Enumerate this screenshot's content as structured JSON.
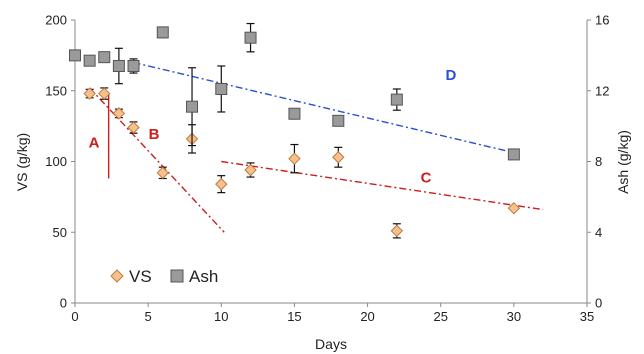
{
  "chart_data": {
    "type": "scatter",
    "title": "",
    "xlabel": "Days",
    "ylabel_left": "VS (g/kg)",
    "ylabel_right": "Ash (g/kg)",
    "xlim": [
      0,
      35
    ],
    "ylim_left": [
      0,
      200
    ],
    "ylim_right": [
      0,
      16
    ],
    "x_ticks": [
      "0",
      "5",
      "10",
      "15",
      "20",
      "25",
      "30",
      "35"
    ],
    "y_left_ticks": [
      "0",
      "50",
      "100",
      "150",
      "200"
    ],
    "y_right_ticks": [
      "0",
      "4",
      "8",
      "12",
      "16"
    ],
    "grid": false,
    "legend_position": "bottom-left",
    "series": [
      {
        "name": "VS",
        "axis": "left",
        "marker": "diamond",
        "color": "#f6c08f",
        "edge": "#c07a3a",
        "points": [
          {
            "x": 1,
            "y": 148,
            "err": 3
          },
          {
            "x": 2,
            "y": 148,
            "err": 4
          },
          {
            "x": 3,
            "y": 134,
            "err": 3
          },
          {
            "x": 4,
            "y": 124,
            "err": 4
          },
          {
            "x": 6,
            "y": 92,
            "err": 4
          },
          {
            "x": 8,
            "y": 116,
            "err": 10
          },
          {
            "x": 10,
            "y": 84,
            "err": 6
          },
          {
            "x": 12,
            "y": 94,
            "err": 5
          },
          {
            "x": 15,
            "y": 102,
            "err": 10
          },
          {
            "x": 18,
            "y": 103,
            "err": 7
          },
          {
            "x": 22,
            "y": 51,
            "err": 5
          },
          {
            "x": 30,
            "y": 67,
            "err": 1
          }
        ]
      },
      {
        "name": "Ash",
        "axis": "right",
        "marker": "square",
        "color": "#9a9a9a",
        "edge": "#555555",
        "points": [
          {
            "x": 0,
            "y": 14.0,
            "err": 0.2
          },
          {
            "x": 1,
            "y": 13.7,
            "err": 0.2
          },
          {
            "x": 2,
            "y": 13.9,
            "err": 0.2
          },
          {
            "x": 3,
            "y": 13.4,
            "err": 1.0
          },
          {
            "x": 4,
            "y": 13.4,
            "err": 0.4
          },
          {
            "x": 6,
            "y": 15.3,
            "err": 0.3
          },
          {
            "x": 8,
            "y": 11.1,
            "err": 2.2
          },
          {
            "x": 10,
            "y": 12.1,
            "err": 1.3
          },
          {
            "x": 12,
            "y": 15.0,
            "err": 0.8
          },
          {
            "x": 15,
            "y": 10.7,
            "err": 0.2
          },
          {
            "x": 18,
            "y": 10.3,
            "err": 0.2
          },
          {
            "x": 22,
            "y": 11.5,
            "err": 0.6
          },
          {
            "x": 30,
            "y": 8.4,
            "err": 0.2
          }
        ]
      }
    ],
    "trend_lines": [
      {
        "label": "A",
        "color": "#cc1e1e",
        "style": "solid",
        "axis": "left",
        "from": [
          2.3,
          148
        ],
        "to": [
          2.3,
          88
        ],
        "label_at": [
          1.3,
          110
        ]
      },
      {
        "label": "B",
        "color": "#cc1e1e",
        "style": "dashdot",
        "axis": "left",
        "from": [
          1.0,
          152
        ],
        "to": [
          10.2,
          50
        ],
        "label_at": [
          5.4,
          116
        ]
      },
      {
        "label": "C",
        "color": "#cc1e1e",
        "style": "dashdot",
        "axis": "left",
        "from": [
          10.0,
          100
        ],
        "to": [
          32.0,
          66
        ],
        "label_at": [
          24.0,
          85
        ]
      },
      {
        "label": "D",
        "color": "#2a50d0",
        "style": "dashdot",
        "axis": "right",
        "from": [
          4.0,
          13.6
        ],
        "to": [
          30.0,
          8.5
        ],
        "label_at": [
          25.7,
          12.6
        ]
      }
    ]
  }
}
